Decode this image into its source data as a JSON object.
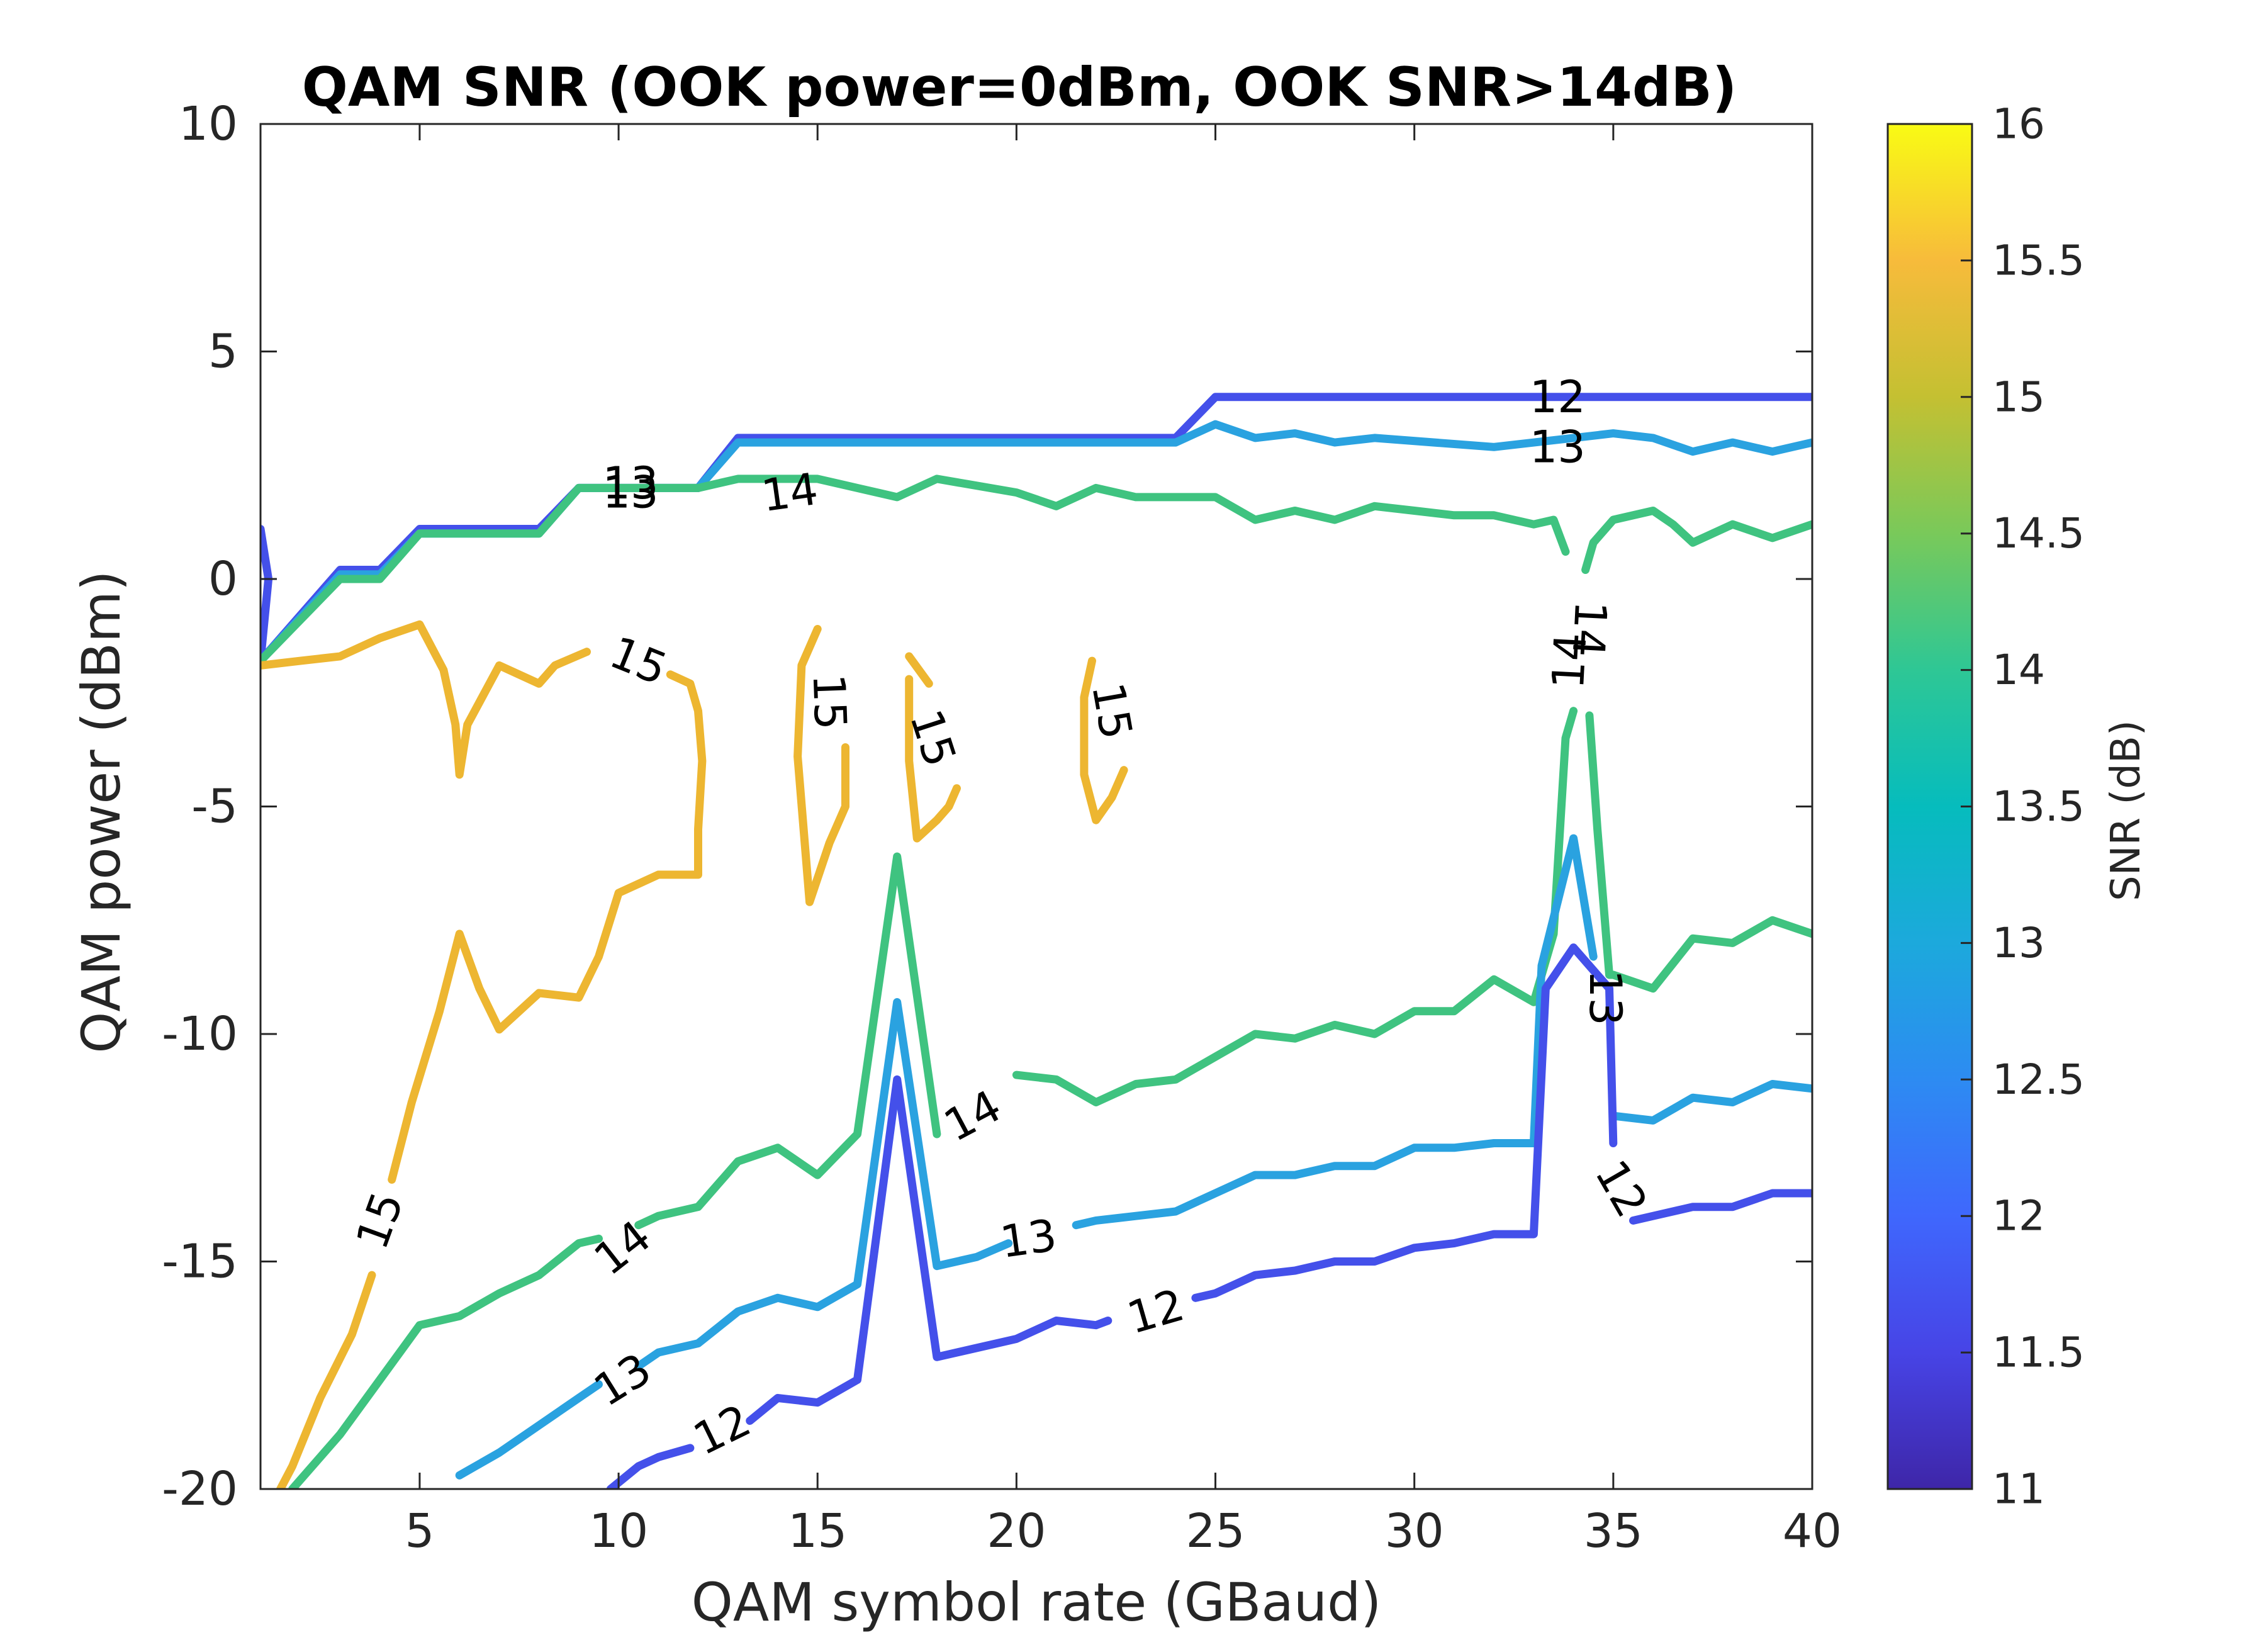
{
  "chart_data": {
    "type": "contour",
    "title": "QAM SNR (OOK power=0dBm, OOK SNR>14dB)",
    "xlabel": "QAM symbol rate (GBaud)",
    "ylabel": "QAM power (dBm)",
    "xlim": [
      1,
      40
    ],
    "ylim": [
      -20,
      10
    ],
    "xticks": [
      5,
      10,
      15,
      20,
      25,
      30,
      35,
      40
    ],
    "yticks": [
      -20,
      -15,
      -10,
      -5,
      0,
      5,
      10
    ],
    "xtick_labels": [
      "5",
      "10",
      "15",
      "20",
      "25",
      "30",
      "35",
      "40"
    ],
    "ytick_labels": [
      "-20",
      "-15",
      "-10",
      "-5",
      "0",
      "5",
      "10"
    ],
    "grid": false,
    "colorbar": {
      "label": "SNR (dB)",
      "range": [
        11,
        16
      ],
      "ticks": [
        11,
        11.5,
        12,
        12.5,
        13,
        13.5,
        14,
        14.5,
        15,
        15.5,
        16
      ],
      "tick_labels": [
        "11",
        "11.5",
        "12",
        "12.5",
        "13",
        "13.5",
        "14",
        "14.5",
        "15",
        "15.5",
        "16"
      ],
      "colormap": "parula"
    },
    "contours": [
      {
        "level": 12,
        "color": "#4450ea",
        "points": [
          [
            1,
            1.1
          ],
          [
            1.2,
            0
          ],
          [
            1,
            -1.8
          ],
          [
            3,
            0.2
          ],
          [
            4,
            0.2
          ],
          [
            5,
            1.1
          ],
          [
            8,
            1.1
          ],
          [
            9,
            2.0
          ],
          [
            12,
            2.0
          ],
          [
            13,
            3.1
          ],
          [
            24,
            3.1
          ],
          [
            25,
            4.0
          ],
          [
            40,
            4.0
          ]
        ]
      },
      {
        "level": 13,
        "color": "#2aa2e0",
        "points": [
          [
            1,
            -1.8
          ],
          [
            3,
            0.1
          ],
          [
            4,
            0.1
          ],
          [
            5,
            1.0
          ],
          [
            8,
            1.0
          ],
          [
            9,
            2.0
          ],
          [
            12,
            2.0
          ],
          [
            13,
            3.0
          ],
          [
            24,
            3.0
          ],
          [
            25,
            3.4
          ],
          [
            26,
            3.1
          ],
          [
            27,
            3.2
          ],
          [
            28,
            3.0
          ],
          [
            29,
            3.1
          ],
          [
            32,
            2.9
          ],
          [
            34,
            3.1
          ],
          [
            35,
            3.2
          ],
          [
            36,
            3.1
          ],
          [
            37,
            2.8
          ],
          [
            38,
            3.0
          ],
          [
            39,
            2.8
          ],
          [
            40,
            3.0
          ]
        ]
      },
      {
        "level": 14,
        "color": "#3fc380",
        "points": [
          [
            1,
            -1.8
          ],
          [
            3,
            0
          ],
          [
            4,
            0
          ],
          [
            5,
            1.0
          ],
          [
            8,
            1.0
          ],
          [
            9,
            2.0
          ],
          [
            12,
            2.0
          ],
          [
            13,
            2.2
          ],
          [
            15,
            2.2
          ],
          [
            16,
            2.0
          ],
          [
            17,
            1.8
          ],
          [
            18,
            2.2
          ],
          [
            20,
            1.9
          ],
          [
            21,
            1.6
          ],
          [
            22,
            2.0
          ],
          [
            23,
            1.8
          ],
          [
            25,
            1.8
          ],
          [
            26,
            1.3
          ],
          [
            27,
            1.5
          ],
          [
            28,
            1.3
          ],
          [
            29,
            1.6
          ],
          [
            30,
            1.5
          ],
          [
            31,
            1.4
          ],
          [
            32,
            1.4
          ],
          [
            33,
            1.2
          ],
          [
            33.5,
            1.3
          ],
          [
            33.8,
            0.6
          ]
        ]
      },
      {
        "level": 14,
        "color": "#3fc380",
        "points": [
          [
            34.3,
            0.2
          ],
          [
            34.5,
            0.8
          ],
          [
            35,
            1.3
          ],
          [
            36,
            1.5
          ],
          [
            36.5,
            1.2
          ],
          [
            37,
            0.8
          ],
          [
            37.5,
            1.0
          ],
          [
            38,
            1.2
          ],
          [
            39,
            0.9
          ],
          [
            40,
            1.2
          ]
        ]
      },
      {
        "level": 15,
        "color": "#edb631",
        "points": [
          [
            1,
            -1.9
          ],
          [
            2,
            -1.8
          ],
          [
            3,
            -1.7
          ],
          [
            4,
            -1.3
          ],
          [
            5,
            -1.0
          ],
          [
            5.6,
            -2.0
          ],
          [
            5.9,
            -3.2
          ],
          [
            6.0,
            -4.3
          ],
          [
            6.2,
            -3.2
          ],
          [
            7,
            -1.9
          ],
          [
            8,
            -2.3
          ],
          [
            8.4,
            -1.9
          ],
          [
            9.2,
            -1.6
          ]
        ]
      },
      {
        "level": 15,
        "color": "#edb631",
        "points": [
          [
            11.3,
            -2.1
          ],
          [
            11.8,
            -2.3
          ],
          [
            12.0,
            -2.9
          ],
          [
            12.1,
            -4.0
          ],
          [
            12.0,
            -5.5
          ],
          [
            12.0,
            -6.5
          ],
          [
            11.0,
            -6.5
          ],
          [
            10.0,
            -6.9
          ],
          [
            9.5,
            -8.3
          ],
          [
            9.0,
            -9.2
          ],
          [
            8.0,
            -9.1
          ],
          [
            7.0,
            -9.9
          ],
          [
            6.5,
            -9.0
          ],
          [
            6.0,
            -7.8
          ],
          [
            5.5,
            -9.5
          ],
          [
            4.8,
            -11.5
          ],
          [
            4.3,
            -13.2
          ]
        ]
      },
      {
        "level": 15,
        "color": "#edb631",
        "points": [
          [
            3.8,
            -15.3
          ],
          [
            3.3,
            -16.6
          ],
          [
            2.5,
            -18.0
          ],
          [
            1.8,
            -19.5
          ],
          [
            1.5,
            -20
          ]
        ]
      },
      {
        "level": 15,
        "color": "#edb631",
        "points": [
          [
            15.0,
            -1.1
          ],
          [
            14.6,
            -1.9
          ],
          [
            14.5,
            -3.9
          ],
          [
            14.8,
            -7.1
          ],
          [
            15.3,
            -5.8
          ],
          [
            15.7,
            -5.0
          ],
          [
            15.7,
            -3.7
          ]
        ]
      },
      {
        "level": 15,
        "color": "#edb631",
        "points": [
          [
            17.3,
            -1.7
          ],
          [
            17.8,
            -2.3
          ]
        ]
      },
      {
        "level": 15,
        "color": "#edb631",
        "points": [
          [
            18.5,
            -4.6
          ],
          [
            18.3,
            -5.0
          ],
          [
            18.0,
            -5.3
          ],
          [
            17.5,
            -5.7
          ],
          [
            17.3,
            -4.0
          ],
          [
            17.3,
            -2.2
          ]
        ]
      },
      {
        "level": 15,
        "color": "#edb631",
        "points": [
          [
            21.9,
            -1.8
          ],
          [
            21.7,
            -2.6
          ],
          [
            21.7,
            -4.3
          ],
          [
            22.0,
            -5.3
          ],
          [
            22.4,
            -4.8
          ],
          [
            22.7,
            -4.2
          ]
        ]
      },
      {
        "level": 14,
        "color": "#3fc380",
        "points": [
          [
            1.8,
            -20
          ],
          [
            3,
            -18.8
          ],
          [
            4,
            -17.6
          ],
          [
            5,
            -16.4
          ],
          [
            6,
            -16.2
          ],
          [
            7,
            -15.7
          ],
          [
            8,
            -15.3
          ],
          [
            9,
            -14.6
          ],
          [
            9.5,
            -14.5
          ]
        ]
      },
      {
        "level": 14,
        "color": "#3fc380",
        "points": [
          [
            10.5,
            -14.2
          ],
          [
            11,
            -14.0
          ],
          [
            12,
            -13.8
          ],
          [
            13,
            -12.8
          ],
          [
            14,
            -12.5
          ],
          [
            15,
            -13.1
          ],
          [
            16,
            -12.2
          ],
          [
            17,
            -6.1
          ],
          [
            18,
            -12.2
          ]
        ]
      },
      {
        "level": 14,
        "color": "#3fc380",
        "points": [
          [
            20,
            -10.9
          ],
          [
            21,
            -11.0
          ],
          [
            22,
            -11.5
          ],
          [
            23,
            -11.1
          ],
          [
            24,
            -11.0
          ],
          [
            25,
            -10.5
          ],
          [
            26,
            -10.0
          ],
          [
            27,
            -10.1
          ],
          [
            28,
            -9.8
          ],
          [
            29,
            -10.0
          ],
          [
            30,
            -9.5
          ],
          [
            31,
            -9.5
          ],
          [
            32,
            -8.8
          ],
          [
            33,
            -9.3
          ],
          [
            33.5,
            -7.8
          ],
          [
            33.8,
            -3.5
          ],
          [
            34.0,
            -2.9
          ]
        ]
      },
      {
        "level": 14,
        "color": "#3fc380",
        "points": [
          [
            34.4,
            -3.0
          ],
          [
            34.6,
            -5.5
          ],
          [
            34.9,
            -8.7
          ],
          [
            35,
            -8.7
          ],
          [
            36,
            -9.0
          ],
          [
            37,
            -7.9
          ],
          [
            38,
            -8.0
          ],
          [
            39,
            -7.5
          ],
          [
            40,
            -7.8
          ]
        ]
      },
      {
        "level": 13,
        "color": "#2aa2e0",
        "points": [
          [
            6,
            -19.7
          ],
          [
            7,
            -19.2
          ],
          [
            8,
            -18.6
          ],
          [
            9,
            -18.0
          ],
          [
            9.5,
            -17.7
          ]
        ]
      },
      {
        "level": 13,
        "color": "#2aa2e0",
        "points": [
          [
            10.5,
            -17.3
          ],
          [
            11,
            -17.0
          ],
          [
            12,
            -16.8
          ],
          [
            13,
            -16.1
          ],
          [
            14,
            -15.8
          ],
          [
            15,
            -16.0
          ],
          [
            16,
            -15.5
          ],
          [
            17,
            -9.3
          ],
          [
            18,
            -15.1
          ],
          [
            19,
            -14.9
          ],
          [
            19.8,
            -14.6
          ]
        ]
      },
      {
        "level": 13,
        "color": "#2aa2e0",
        "points": [
          [
            21.5,
            -14.2
          ],
          [
            22,
            -14.1
          ],
          [
            23,
            -14.0
          ],
          [
            24,
            -13.9
          ],
          [
            25,
            -13.5
          ],
          [
            26,
            -13.1
          ],
          [
            27,
            -13.1
          ],
          [
            28,
            -12.9
          ],
          [
            29,
            -12.9
          ],
          [
            30,
            -12.5
          ],
          [
            31,
            -12.5
          ],
          [
            32,
            -12.4
          ],
          [
            33,
            -12.4
          ],
          [
            33.2,
            -8.5
          ],
          [
            34,
            -5.7
          ],
          [
            34.5,
            -8.3
          ]
        ]
      },
      {
        "level": 13,
        "color": "#2aa2e0",
        "points": [
          [
            35,
            -11.8
          ],
          [
            36,
            -11.9
          ],
          [
            37,
            -11.4
          ],
          [
            38,
            -11.5
          ],
          [
            39,
            -11.1
          ],
          [
            40,
            -11.2
          ]
        ]
      },
      {
        "level": 12,
        "color": "#4450ea",
        "points": [
          [
            9.8,
            -20
          ],
          [
            10.5,
            -19.5
          ],
          [
            11,
            -19.3
          ],
          [
            11.8,
            -19.1
          ]
        ]
      },
      {
        "level": 12,
        "color": "#4450ea",
        "points": [
          [
            13.3,
            -18.5
          ],
          [
            14,
            -18.0
          ],
          [
            15,
            -18.1
          ],
          [
            16,
            -17.6
          ],
          [
            17,
            -11.0
          ],
          [
            18,
            -17.1
          ],
          [
            19,
            -16.9
          ],
          [
            20,
            -16.7
          ],
          [
            21,
            -16.3
          ],
          [
            22,
            -16.4
          ],
          [
            22.3,
            -16.3
          ]
        ]
      },
      {
        "level": 12,
        "color": "#4450ea",
        "points": [
          [
            24.5,
            -15.8
          ],
          [
            25,
            -15.7
          ],
          [
            26,
            -15.3
          ],
          [
            27,
            -15.2
          ],
          [
            28,
            -15.0
          ],
          [
            29,
            -15.0
          ],
          [
            30,
            -14.7
          ],
          [
            31,
            -14.6
          ],
          [
            32,
            -14.4
          ],
          [
            33,
            -14.4
          ],
          [
            33.3,
            -9.0
          ],
          [
            34,
            -8.1
          ],
          [
            34.5,
            -8.6
          ],
          [
            34.9,
            -9.0
          ],
          [
            35,
            -12.4
          ]
        ]
      },
      {
        "level": 12,
        "color": "#4450ea",
        "points": [
          [
            35.5,
            -14.1
          ],
          [
            36,
            -14.0
          ],
          [
            37,
            -13.8
          ],
          [
            38,
            -13.8
          ],
          [
            39,
            -13.5
          ],
          [
            40,
            -13.5
          ]
        ]
      }
    ],
    "contour_labels": [
      {
        "text": "12",
        "x": 33.6,
        "y": 4.0,
        "angle": 0
      },
      {
        "text": "13",
        "x": 33.6,
        "y": 2.9,
        "angle": 0
      },
      {
        "text": "13",
        "x": 10.3,
        "y": 1.9,
        "angle": 0
      },
      {
        "text": "13",
        "x": 10.3,
        "y": 2.1,
        "angle": 0
      },
      {
        "text": "14",
        "x": 14.3,
        "y": 1.9,
        "angle": -8
      },
      {
        "text": "15",
        "x": 10.5,
        "y": -1.8,
        "angle": 22
      },
      {
        "text": "15",
        "x": 15.3,
        "y": -2.7,
        "angle": 88
      },
      {
        "text": "15",
        "x": 17.9,
        "y": -3.5,
        "angle": 72
      },
      {
        "text": "15",
        "x": 22.4,
        "y": -2.9,
        "angle": 80
      },
      {
        "text": "14",
        "x": 33.9,
        "y": -1.8,
        "angle": -87
      },
      {
        "text": "14",
        "x": 34.4,
        "y": -1.1,
        "angle": 93
      },
      {
        "text": "13",
        "x": 34.8,
        "y": -9.2,
        "angle": 90
      },
      {
        "text": "12",
        "x": 35.2,
        "y": -13.4,
        "angle": 60
      },
      {
        "text": "14",
        "x": 18.9,
        "y": -11.8,
        "angle": -28
      },
      {
        "text": "13",
        "x": 20.3,
        "y": -14.5,
        "angle": -8
      },
      {
        "text": "12",
        "x": 23.5,
        "y": -16.1,
        "angle": -16
      },
      {
        "text": "15",
        "x": 4.0,
        "y": -14.1,
        "angle": -70
      },
      {
        "text": "14",
        "x": 10.1,
        "y": -14.7,
        "angle": -38
      },
      {
        "text": "13",
        "x": 10.1,
        "y": -17.6,
        "angle": -32
      },
      {
        "text": "12",
        "x": 12.6,
        "y": -18.7,
        "angle": -26
      }
    ]
  }
}
